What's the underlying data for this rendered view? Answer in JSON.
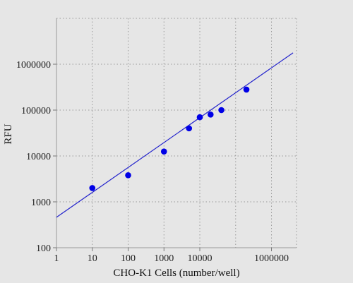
{
  "chart_data": {
    "type": "scatter",
    "xlabel": "CHO-K1 Cells (number/well)",
    "ylabel": "RFU",
    "x_scale": "log",
    "y_scale": "log",
    "xlim": [
      1,
      5000000
    ],
    "ylim": [
      100,
      10000000
    ],
    "x_ticks": [
      {
        "value": 1,
        "label": "1"
      },
      {
        "value": 10,
        "label": "10"
      },
      {
        "value": 100,
        "label": "100"
      },
      {
        "value": 1000,
        "label": "1000"
      },
      {
        "value": 10000,
        "label": "10000"
      },
      {
        "value": 1000000,
        "label": "1000000"
      }
    ],
    "x_grid": [
      10,
      100,
      1000,
      10000,
      100000,
      1000000
    ],
    "y_ticks": [
      {
        "value": 100,
        "label": "100"
      },
      {
        "value": 1000,
        "label": "1000"
      },
      {
        "value": 10000,
        "label": "10000"
      },
      {
        "value": 100000,
        "label": "100000"
      },
      {
        "value": 1000000,
        "label": "1000000"
      }
    ],
    "y_grid": [
      1000,
      10000,
      100000,
      1000000
    ],
    "grid": true,
    "point_color": "#0000e6",
    "line_color": "#2222cc",
    "points": [
      {
        "x": 10,
        "y": 2000
      },
      {
        "x": 100,
        "y": 3800
      },
      {
        "x": 1000,
        "y": 12500
      },
      {
        "x": 5000,
        "y": 40000
      },
      {
        "x": 10000,
        "y": 70000
      },
      {
        "x": 20000,
        "y": 80000
      },
      {
        "x": 40000,
        "y": 100000
      },
      {
        "x": 200000,
        "y": 280000
      }
    ],
    "fit_line": [
      {
        "x": 1,
        "y": 460
      },
      {
        "x": 5000000,
        "y": 2000000
      }
    ]
  }
}
